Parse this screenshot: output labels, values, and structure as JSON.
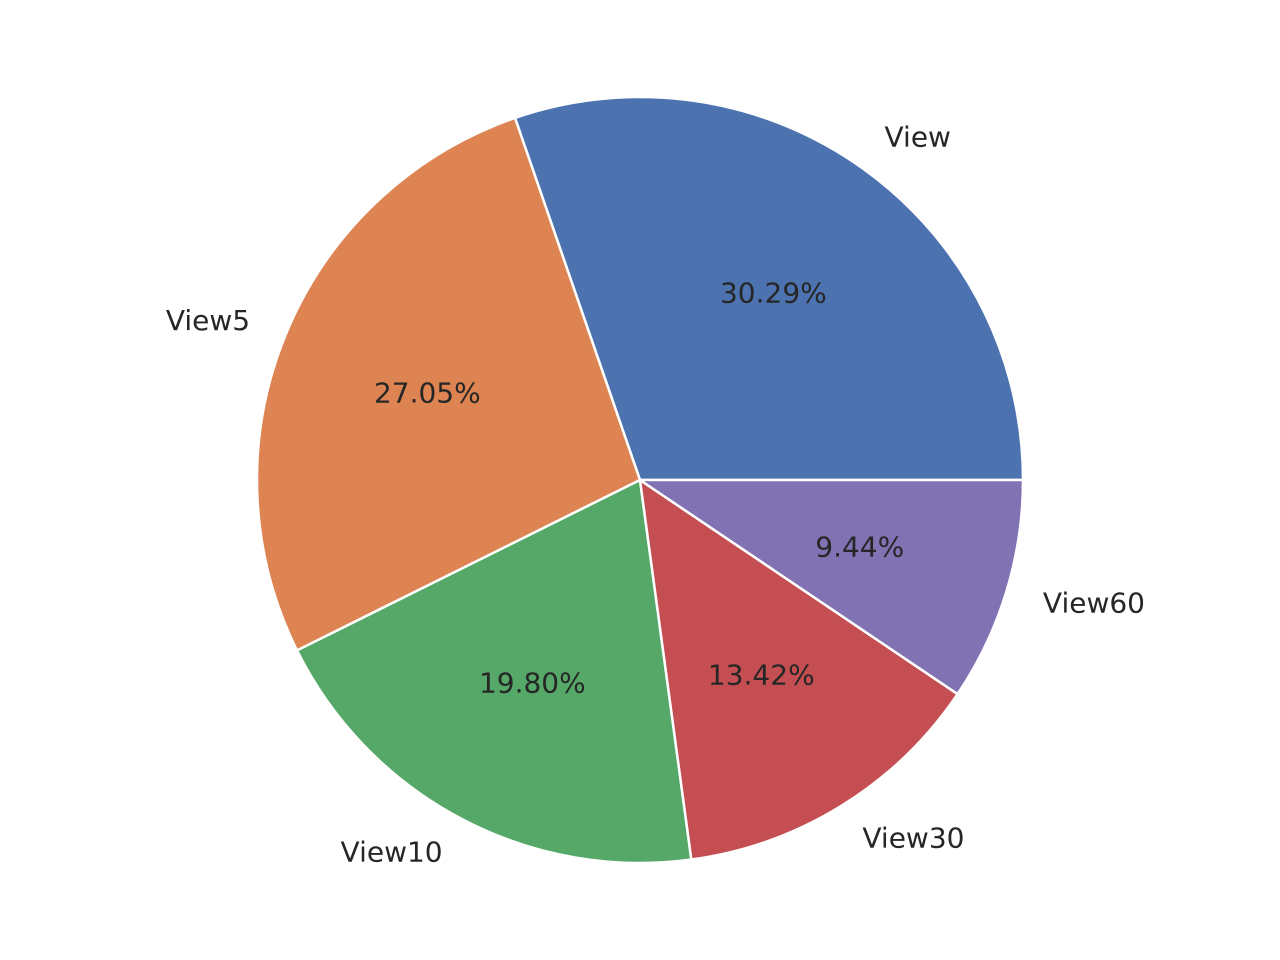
{
  "chart_data": {
    "type": "pie",
    "title": "",
    "categories": [
      "View",
      "View5",
      "View10",
      "View30",
      "View60"
    ],
    "values": [
      30.29,
      27.05,
      19.8,
      13.42,
      9.44
    ],
    "value_labels": [
      "30.29%",
      "27.05%",
      "19.80%",
      "13.42%",
      "9.44%"
    ],
    "colors": [
      "#4c72b0",
      "#dd8452",
      "#55a868",
      "#c44e52",
      "#8172b3"
    ],
    "start_angle_deg": 0,
    "direction": "counterclockwise",
    "edge_color": "#ffffff",
    "legend": "none"
  }
}
